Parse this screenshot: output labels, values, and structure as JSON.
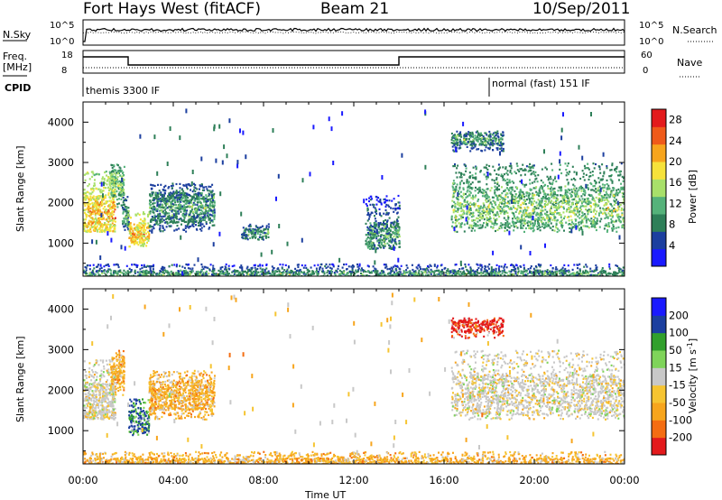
{
  "header": {
    "station": "Fort Hays West (fitACF)",
    "beam": "Beam 21",
    "date": "10/Sep/2011"
  },
  "panels": {
    "nsky": {
      "left_label": "N.Sky",
      "right_label": "N.Search",
      "left_ticks": [
        "10^5",
        "10^0"
      ],
      "right_ticks": [
        "10^5",
        "10^0"
      ]
    },
    "freq": {
      "left_label_1": "Freq.",
      "left_label_2": "[MHz]",
      "right_label": "Nave",
      "left_ticks": [
        "18",
        "8"
      ],
      "right_ticks": [
        "60",
        "0"
      ]
    },
    "cpid": {
      "label": "CPID",
      "segments": [
        "themis 3300 IF",
        "normal (fast) 151 IF"
      ]
    }
  },
  "time_axis": {
    "label": "Time UT",
    "ticks": [
      "00:00",
      "04:00",
      "08:00",
      "12:00",
      "16:00",
      "20:00",
      "00:00"
    ]
  },
  "colors": {
    "power": [
      "#1a1aff",
      "#1c3f9f",
      "#2e7f58",
      "#55b27a",
      "#a8e06a",
      "#f6e23a",
      "#f7a51d",
      "#ef5a1a",
      "#e31a1c"
    ],
    "velocity": [
      "#e31a1c",
      "#f46d12",
      "#f7a51d",
      "#f6c431",
      "#c8c8c8",
      "#7fd45a",
      "#31a02c",
      "#1c3f9f",
      "#1a1aff"
    ]
  },
  "chart_data": [
    {
      "type": "heatmap",
      "title": "Power",
      "xlabel": "Time UT",
      "ylabel": "Slant Range [km]",
      "xlim": [
        0,
        24
      ],
      "ylim": [
        180,
        4500
      ],
      "y_ticks": [
        1000,
        2000,
        3000,
        4000
      ],
      "colorbar": {
        "label": "Power [dB]",
        "unit": "dB",
        "ticks": [
          4,
          8,
          12,
          16,
          20,
          24,
          28
        ],
        "range": [
          0,
          30
        ]
      },
      "regions": [
        {
          "t_start": 0.0,
          "t_end": 1.4,
          "range_low": 1300,
          "range_high": 2800,
          "peak_range": 1750,
          "level": "high"
        },
        {
          "t_start": 1.2,
          "t_end": 1.8,
          "range_low": 1900,
          "range_high": 3000,
          "peak_range": 2500,
          "level": "medium"
        },
        {
          "t_start": 1.7,
          "t_end": 2.0,
          "range_low": 1300,
          "range_high": 2200,
          "peak_range": 1700,
          "level": "low"
        },
        {
          "t_start": 2.0,
          "t_end": 2.9,
          "range_low": 900,
          "range_high": 1800,
          "peak_range": 1250,
          "level": "high"
        },
        {
          "t_start": 2.9,
          "t_end": 5.8,
          "range_low": 1300,
          "range_high": 2500,
          "peak_range": 1900,
          "level": "low"
        },
        {
          "t_start": 7.0,
          "t_end": 8.2,
          "range_low": 1100,
          "range_high": 1500,
          "peak_range": 1250,
          "level": "low"
        },
        {
          "t_start": 12.5,
          "t_end": 14.0,
          "range_low": 1100,
          "range_high": 2200,
          "peak_range": 1200,
          "level": "low"
        },
        {
          "t_start": 16.3,
          "t_end": 24.0,
          "range_low": 1300,
          "range_high": 3000,
          "peak_range": 1900,
          "level": "medium"
        },
        {
          "t_start": 16.3,
          "t_end": 18.6,
          "range_low": 3300,
          "range_high": 3800,
          "peak_range": 3600,
          "level": "low"
        },
        {
          "t_start": 0.0,
          "t_end": 24.0,
          "range_low": 180,
          "range_high": 500,
          "peak_range": 250,
          "level": "low"
        }
      ]
    },
    {
      "type": "heatmap",
      "title": "Velocity",
      "xlabel": "Time UT",
      "ylabel": "Slant Range [km]",
      "xlim": [
        0,
        24
      ],
      "ylim": [
        180,
        4500
      ],
      "y_ticks": [
        1000,
        2000,
        3000,
        4000
      ],
      "colorbar": {
        "label": "Velocity [m s^-1]",
        "unit": "m s^-1",
        "ticks": [
          200,
          100,
          50,
          15,
          -15,
          -50,
          -100,
          -200
        ],
        "range": [
          -250,
          250
        ]
      },
      "regions": [
        {
          "t_start": 0.0,
          "t_end": 1.4,
          "range_low": 1300,
          "range_high": 2800,
          "peak_range": 1750,
          "velocity": "near-zero"
        },
        {
          "t_start": 1.2,
          "t_end": 1.8,
          "range_low": 1900,
          "range_high": 3000,
          "peak_range": 2500,
          "velocity": "negative"
        },
        {
          "t_start": 2.0,
          "t_end": 2.9,
          "range_low": 900,
          "range_high": 1800,
          "peak_range": 1250,
          "velocity": "positive"
        },
        {
          "t_start": 2.9,
          "t_end": 5.8,
          "range_low": 1300,
          "range_high": 2500,
          "peak_range": 1900,
          "velocity": "negative"
        },
        {
          "t_start": 16.3,
          "t_end": 24.0,
          "range_low": 1300,
          "range_high": 3000,
          "peak_range": 1900,
          "velocity": "near-zero"
        },
        {
          "t_start": 16.3,
          "t_end": 18.6,
          "range_low": 3300,
          "range_high": 3800,
          "peak_range": 3600,
          "velocity": "strong-negative"
        },
        {
          "t_start": 0.0,
          "t_end": 24.0,
          "range_low": 180,
          "range_high": 500,
          "peak_range": 250,
          "velocity": "negative"
        }
      ]
    }
  ]
}
